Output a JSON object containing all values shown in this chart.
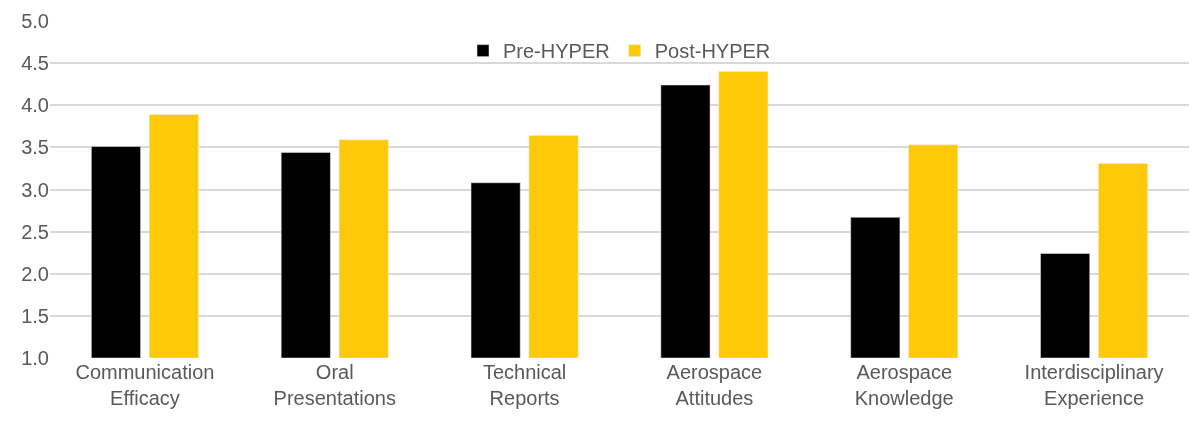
{
  "chart_data": {
    "type": "bar",
    "categories": [
      "Communication Efficacy",
      "Oral Presentations",
      "Technical Reports",
      "Aerospace Attitudes",
      "Aerospace Knowledge",
      "Interdisciplinary Experience"
    ],
    "series": [
      {
        "name": "Pre-HYPER",
        "color": "#000000",
        "values": [
          3.51,
          3.44,
          3.08,
          4.24,
          2.67,
          2.24
        ]
      },
      {
        "name": "Post-HYPER",
        "color": "#ffc907",
        "values": [
          3.89,
          3.59,
          3.64,
          4.4,
          3.53,
          3.31
        ]
      }
    ],
    "ylim": [
      1.0,
      5.0
    ],
    "yticks": [
      {
        "value": 1.0,
        "label": "1.0"
      },
      {
        "value": 1.5,
        "label": "1.5"
      },
      {
        "value": 2.0,
        "label": "2.0"
      },
      {
        "value": 2.5,
        "label": "2.5"
      },
      {
        "value": 3.0,
        "label": "3.0"
      },
      {
        "value": 3.5,
        "label": "3.5"
      },
      {
        "value": 4.0,
        "label": "4.0"
      },
      {
        "value": 4.5,
        "label": "4.5"
      },
      {
        "value": 5.0,
        "label": "5.0"
      }
    ],
    "grid": "y",
    "legend": "top"
  }
}
